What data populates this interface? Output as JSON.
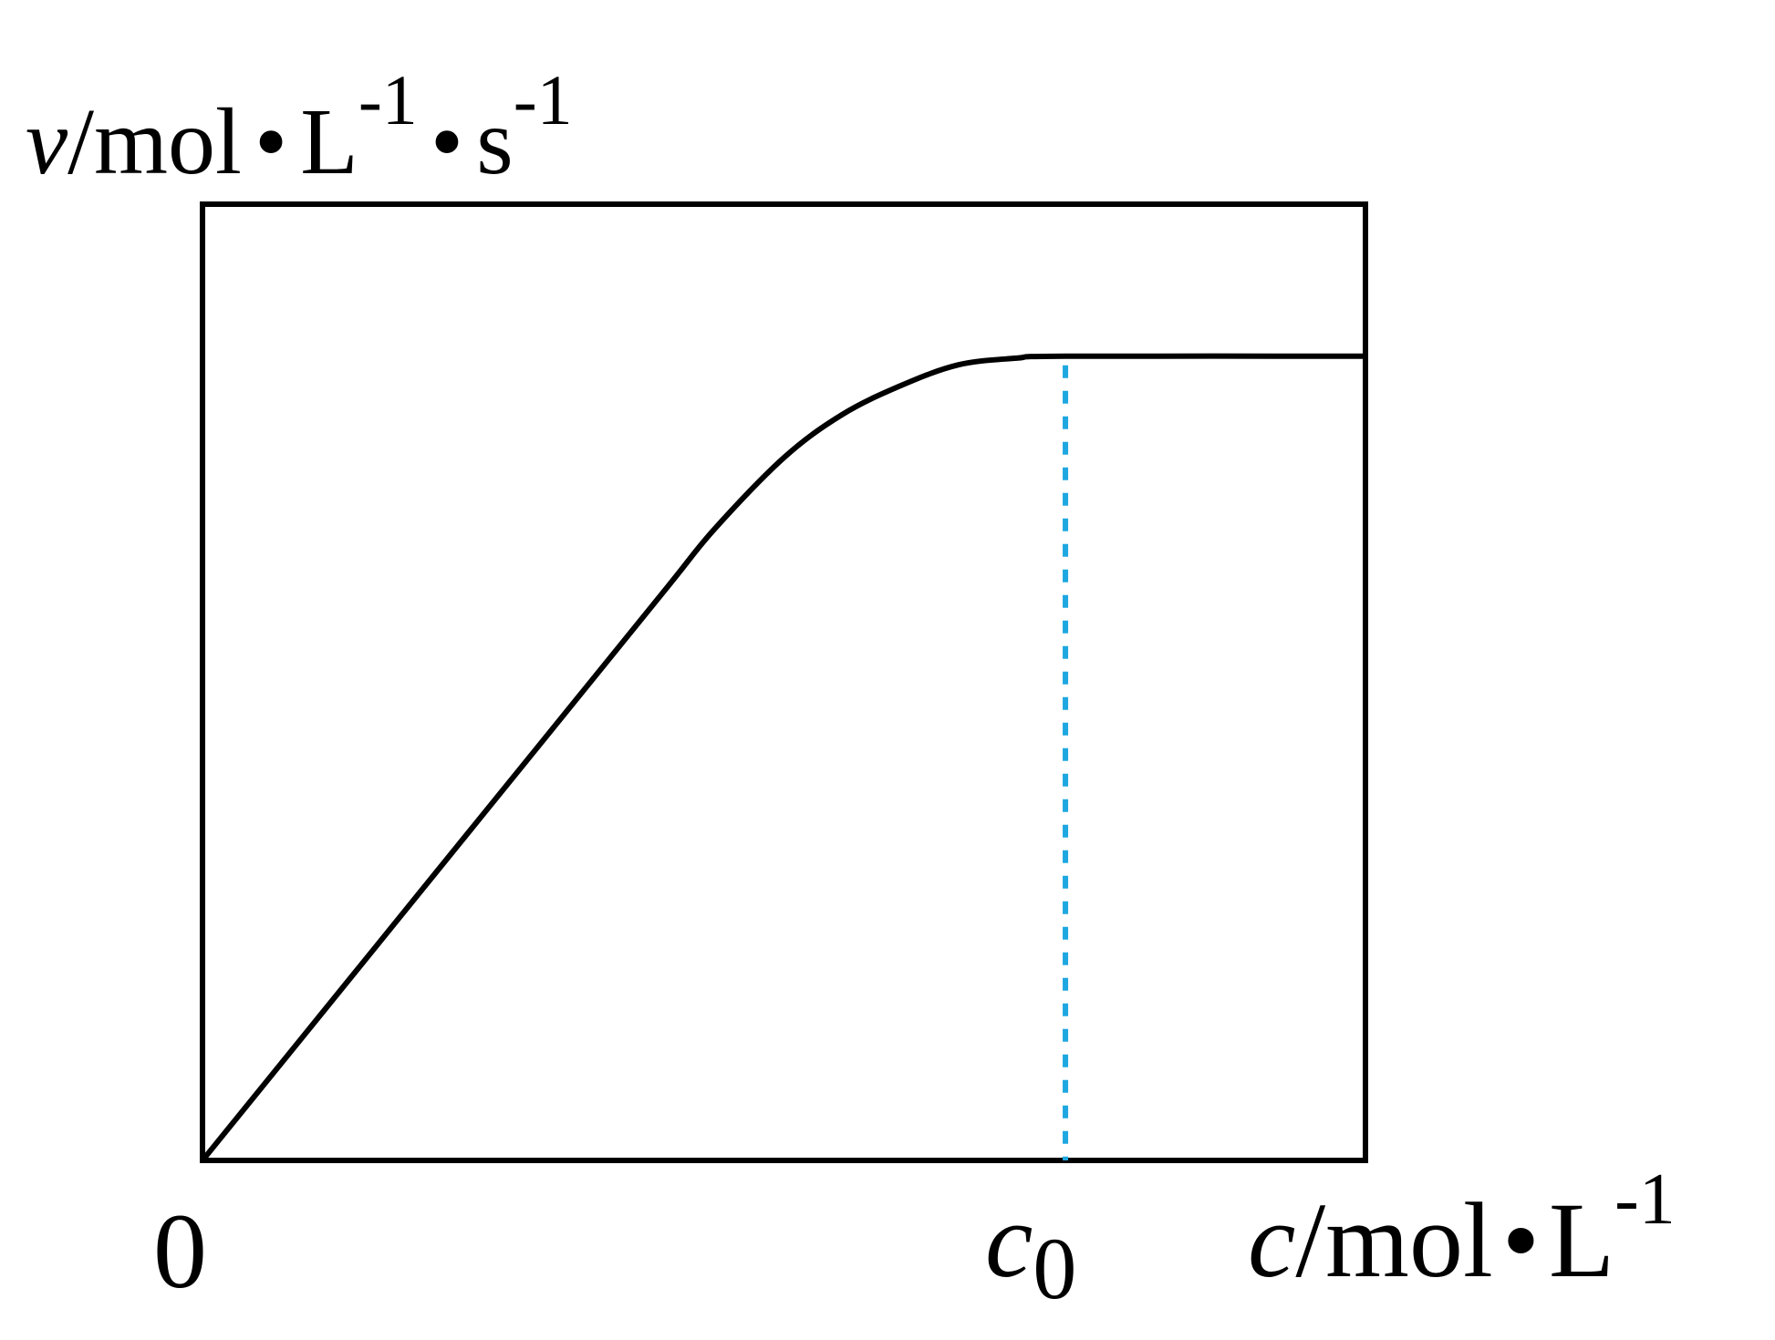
{
  "chart_data": {
    "type": "line",
    "title": "",
    "ylabel": {
      "symbol": "v",
      "unit_main": "/mol",
      "dot": "•",
      "unit_L": "L",
      "exp_L": "-1",
      "unit_s": "s",
      "exp_s": "-1"
    },
    "xlabel": {
      "symbol": "c",
      "unit_main": "/mol",
      "dot": "•",
      "unit_L": "L",
      "exp_L": "-1"
    },
    "origin_label": "0",
    "marker": {
      "symbol": "c",
      "subscript": "0",
      "x": 0.742
    },
    "xlim": [
      0,
      1
    ],
    "ylim": [
      0,
      1
    ],
    "grid": false,
    "series": [
      {
        "x": [
          0,
          0.1,
          0.2,
          0.3,
          0.4,
          0.44,
          0.5,
          0.55,
          0.6,
          0.65,
          0.7,
          0.742,
          1.0
        ],
        "y": [
          0,
          0.15,
          0.3,
          0.45,
          0.6,
          0.66,
          0.735,
          0.78,
          0.81,
          0.832,
          0.839,
          0.841,
          0.841
        ],
        "color": "#000000"
      }
    ],
    "marker_line_color": "#1ea7e1"
  }
}
